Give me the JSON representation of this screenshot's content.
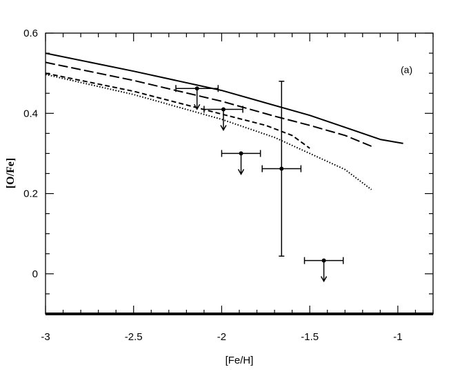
{
  "chart_data": {
    "type": "line",
    "title": "",
    "panel_label": "(a)",
    "xlabel": "[Fe/H]",
    "ylabel": "[O/Fe]",
    "xlim": [
      -3,
      -0.8
    ],
    "ylim": [
      -0.1,
      0.6
    ],
    "xticks": [
      -3,
      -2.5,
      -2,
      -1.5,
      -1
    ],
    "xtick_labels": [
      "-3",
      "-2.5",
      "-2",
      "-1.5",
      "-1"
    ],
    "yticks": [
      0,
      0.2,
      0.4,
      0.6
    ],
    "ytick_labels": [
      "0",
      "0.2",
      "0.4",
      "0.6"
    ],
    "grid": false,
    "series": [
      {
        "style": "solid",
        "x": [
          -3.0,
          -2.5,
          -2.0,
          -1.5,
          -1.3,
          -1.1,
          -0.97
        ],
        "y": [
          0.55,
          0.505,
          0.457,
          0.395,
          0.365,
          0.335,
          0.325
        ]
      },
      {
        "style": "long-dash",
        "x": [
          -3.0,
          -2.5,
          -2.0,
          -1.7,
          -1.5,
          -1.3,
          -1.15
        ],
        "y": [
          0.527,
          0.482,
          0.43,
          0.393,
          0.37,
          0.345,
          0.318
        ]
      },
      {
        "style": "short-dash",
        "x": [
          -3.0,
          -2.5,
          -2.0,
          -1.75,
          -1.6,
          -1.5
        ],
        "y": [
          0.5,
          0.455,
          0.398,
          0.37,
          0.345,
          0.313
        ]
      },
      {
        "style": "dotted",
        "x": [
          -3.0,
          -2.5,
          -2.0,
          -1.7,
          -1.5,
          -1.3,
          -1.15
        ],
        "y": [
          0.497,
          0.447,
          0.385,
          0.34,
          0.3,
          0.26,
          0.21
        ]
      }
    ],
    "observations": [
      {
        "x": -2.14,
        "y": 0.462,
        "xerr": 0.12,
        "upper_limit": true
      },
      {
        "x": -1.99,
        "y": 0.41,
        "xerr": 0.11,
        "upper_limit": true
      },
      {
        "x": -1.89,
        "y": 0.3,
        "xerr": 0.11,
        "upper_limit": true
      },
      {
        "x": -1.66,
        "y": 0.262,
        "xerr": 0.11,
        "yerr": [
          0.218,
          0.218
        ],
        "upper_limit": false
      },
      {
        "x": -1.42,
        "y": 0.033,
        "xerr": 0.11,
        "upper_limit": true
      }
    ]
  }
}
